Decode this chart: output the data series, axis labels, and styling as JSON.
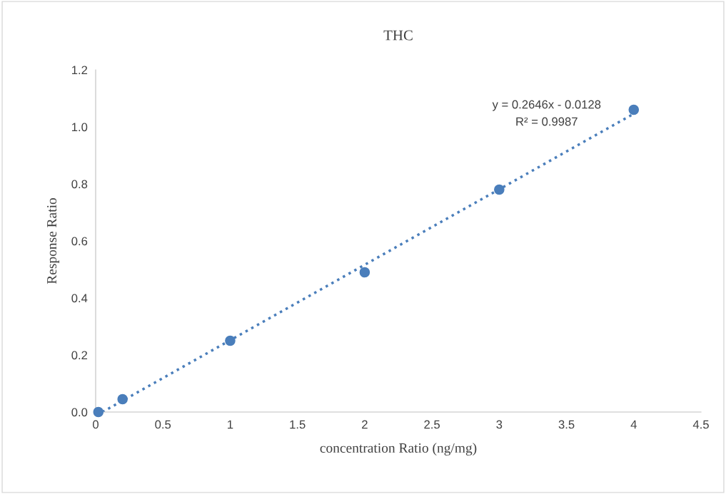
{
  "chart_data": {
    "type": "scatter",
    "title": "THC",
    "xlabel": "concentration Ratio (ng/mg)",
    "ylabel": "Response Ratio",
    "series": [
      {
        "color": "#4a7ebb",
        "x": [
          0.02,
          0.2,
          1,
          2,
          3,
          4
        ],
        "values": [
          0.0,
          0.045,
          0.25,
          0.49,
          0.78,
          1.06
        ],
        "marker": "circle"
      },
      {
        "type": "line",
        "color": "#4a7ebb",
        "x": [
          0.05,
          4
        ],
        "values": [
          0.0,
          1.046
        ],
        "line_style": "dotted",
        "marker": "none"
      }
    ],
    "annotations": [
      "y = 0.2646x - 0.0128",
      "R² = 0.9987"
    ],
    "xlim": [
      0,
      4.5
    ],
    "ylim": [
      0,
      1.2
    ],
    "xticks": [
      0,
      0.5,
      1,
      1.5,
      2,
      2.5,
      3,
      3.5,
      4,
      4.5
    ],
    "yticks": [
      {
        "value": 0,
        "label": "0.0"
      },
      {
        "value": 0.2,
        "label": "0.2"
      },
      {
        "value": 0.4,
        "label": "0.4"
      },
      {
        "value": 0.6,
        "label": "0.6"
      },
      {
        "value": 0.8,
        "label": "0.8"
      },
      {
        "value": 1.0,
        "label": "1.0"
      },
      {
        "value": 1.2,
        "label": "1.2"
      }
    ],
    "grid": false,
    "legend": false
  }
}
